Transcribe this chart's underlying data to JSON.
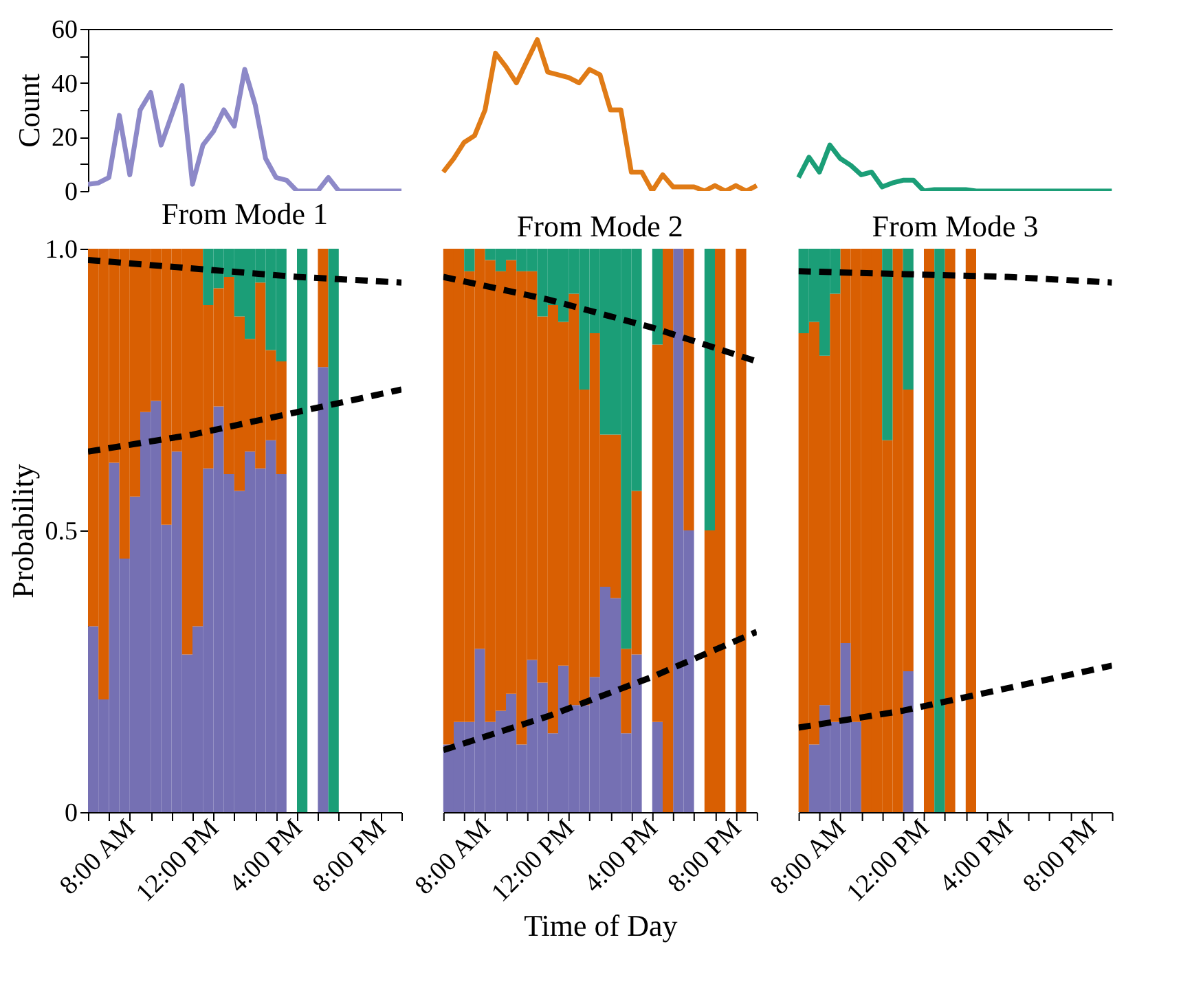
{
  "chart_data": [
    {
      "type": "line",
      "ylabel": "Count",
      "ylim": [
        0,
        60
      ],
      "yticks": [
        0,
        {
          "value": 10,
          "label": null
        },
        20,
        {
          "value": 30,
          "label": null
        },
        40,
        {
          "value": 50,
          "label": null
        },
        60
      ],
      "tick_labels": "y",
      "categories": [
        null,
        null,
        null,
        null,
        null,
        null,
        null,
        null,
        null,
        null,
        null,
        null,
        null,
        null,
        null,
        null,
        null,
        null,
        null,
        null,
        null,
        null,
        null,
        null,
        null,
        null,
        null,
        null,
        null,
        null,
        null,
        null,
        null,
        null,
        null,
        null,
        null,
        null,
        null,
        null,
        null,
        null,
        null,
        null,
        null,
        null,
        null,
        null,
        null,
        null,
        null,
        null,
        null,
        null,
        null,
        null,
        null,
        null,
        null,
        null,
        null,
        null,
        null,
        null,
        null,
        null,
        null,
        null,
        null,
        null,
        null,
        null,
        null,
        null,
        null,
        null,
        null,
        null,
        null,
        null,
        null,
        null,
        null,
        null,
        null,
        null,
        null,
        null,
        null,
        null,
        null,
        null,
        null,
        null,
        null,
        null,
        null,
        null,
        null
      ],
      "series": [
        {
          "color": "#8d89c8",
          "values": [
            2.5,
            3,
            5,
            28,
            6,
            30,
            36.5,
            17,
            28,
            39,
            2.5,
            17,
            22,
            30,
            24,
            45,
            32,
            12,
            5,
            4,
            0,
            0,
            0,
            5,
            0,
            0,
            0,
            0,
            0,
            0,
            0,
            null,
            null,
            null,
            null,
            null,
            null,
            null,
            null,
            null,
            null,
            null,
            null,
            null,
            null,
            null,
            null,
            null,
            null,
            null,
            null,
            null,
            null,
            null,
            null,
            null,
            null,
            null,
            null,
            null,
            null,
            null,
            null,
            null,
            null,
            null,
            null,
            null,
            null,
            null,
            null,
            null,
            null,
            null,
            null,
            null,
            null,
            null,
            null,
            null,
            null,
            null,
            null,
            null,
            null,
            null,
            null,
            null,
            null,
            null,
            null,
            null,
            null,
            null,
            null,
            null,
            null,
            null,
            null
          ]
        },
        {
          "color": "#e07b16",
          "values": [
            null,
            null,
            null,
            null,
            null,
            null,
            null,
            null,
            null,
            null,
            null,
            null,
            null,
            null,
            null,
            null,
            null,
            null,
            null,
            null,
            null,
            null,
            null,
            null,
            null,
            null,
            null,
            null,
            null,
            null,
            null,
            null,
            null,
            null,
            7,
            12,
            18,
            20.5,
            30,
            51,
            46,
            40,
            48,
            56,
            44,
            43,
            42,
            40,
            45,
            43,
            30,
            30,
            7,
            7,
            0,
            6,
            1.5,
            1.5,
            1.5,
            0,
            2,
            0,
            2,
            0,
            2,
            null,
            null,
            null,
            null,
            null,
            null,
            null,
            null,
            null,
            null,
            null,
            null,
            null,
            null,
            null,
            null,
            null,
            null,
            null,
            null,
            null,
            null,
            null,
            null,
            null,
            null,
            null,
            null,
            null,
            null,
            null,
            null,
            null,
            null
          ]
        },
        {
          "color": "#1b9e77",
          "values": [
            null,
            null,
            null,
            null,
            null,
            null,
            null,
            null,
            null,
            null,
            null,
            null,
            null,
            null,
            null,
            null,
            null,
            null,
            null,
            null,
            null,
            null,
            null,
            null,
            null,
            null,
            null,
            null,
            null,
            null,
            null,
            null,
            null,
            null,
            null,
            null,
            null,
            null,
            null,
            null,
            null,
            null,
            null,
            null,
            null,
            null,
            null,
            null,
            null,
            null,
            null,
            null,
            null,
            null,
            null,
            null,
            null,
            null,
            null,
            null,
            null,
            null,
            null,
            null,
            null,
            null,
            null,
            null,
            5,
            12.5,
            7,
            17,
            12,
            9.5,
            6,
            7,
            1.5,
            3,
            4,
            4,
            0,
            0.5,
            0.5,
            0.5,
            0.5,
            0,
            0,
            0,
            0,
            0,
            0,
            0,
            0,
            0,
            0,
            0,
            0,
            0,
            0
          ]
        }
      ]
    },
    {
      "type": "bar",
      "stacked": true,
      "title": "From Mode 1",
      "ylabel": "Probability",
      "xlim": [
        6,
        21
      ],
      "ylim": [
        0,
        1
      ],
      "yticks": [
        0,
        0.5,
        {
          "value": 1,
          "label": "1.0"
        }
      ],
      "xticks": [
        {
          "value": 6,
          "label": null
        },
        {
          "value": 7,
          "label": null
        },
        {
          "value": 8,
          "label": "8:00 AM"
        },
        {
          "value": 9,
          "label": null
        },
        {
          "value": 10,
          "label": null
        },
        {
          "value": 11,
          "label": null
        },
        {
          "value": 12,
          "label": "12:00 PM"
        },
        {
          "value": 13,
          "label": null
        },
        {
          "value": 14,
          "label": null
        },
        {
          "value": 15,
          "label": null
        },
        {
          "value": 16,
          "label": "4:00 PM"
        },
        {
          "value": 17,
          "label": null
        },
        {
          "value": 18,
          "label": null
        },
        {
          "value": 19,
          "label": null
        },
        {
          "value": 20,
          "label": "8:00 PM"
        },
        {
          "value": 21,
          "label": null
        }
      ],
      "x": [
        6.25,
        6.75,
        7.25,
        7.75,
        8.25,
        8.75,
        9.25,
        9.75,
        10.25,
        10.75,
        11.25,
        11.75,
        12.25,
        12.75,
        13.25,
        13.75,
        14.25,
        14.75,
        15.25,
        16.25,
        17.25,
        17.75
      ],
      "series": [
        {
          "color": "#7570b3",
          "values": [
            0.33,
            0.2,
            0.62,
            0.45,
            0.56,
            0.71,
            0.73,
            0.51,
            0.64,
            0.28,
            0.33,
            0.61,
            0.72,
            0.6,
            0.57,
            0.64,
            0.61,
            0.66,
            0.6,
            null,
            0.79,
            null
          ]
        },
        {
          "color": "#d95f02",
          "values": [
            0.67,
            0.8,
            0.38,
            0.55,
            0.44,
            0.29,
            0.27,
            0.49,
            0.36,
            0.72,
            0.67,
            0.29,
            0.21,
            0.35,
            0.31,
            0.2,
            0.33,
            0.16,
            0.2,
            null,
            0.21,
            null
          ]
        },
        {
          "color": "#1b9e77",
          "values": [
            null,
            null,
            null,
            null,
            null,
            null,
            null,
            null,
            null,
            null,
            null,
            0.1,
            0.07,
            0.05,
            0.12,
            0.16,
            0.06,
            0.18,
            0.2,
            1,
            null,
            1
          ]
        },
        {
          "type": "line",
          "line_style": "dashed",
          "color": "#000000",
          "x": [
            6,
            11,
            16,
            21
          ],
          "values": [
            0.64,
            0.67,
            0.71,
            0.75
          ]
        },
        {
          "type": "line",
          "line_style": "dashed",
          "color": "#000000",
          "x": [
            6,
            11,
            16,
            21
          ],
          "values": [
            0.98,
            0.965,
            0.95,
            0.94
          ]
        }
      ]
    },
    {
      "type": "bar",
      "stacked": true,
      "title": "From Mode 2",
      "xlabel": "Time of Day",
      "xlim": [
        6,
        21
      ],
      "ylim": [
        0,
        1
      ],
      "tick_labels": "x",
      "xticks": [
        {
          "value": 6,
          "label": null
        },
        {
          "value": 7,
          "label": null
        },
        {
          "value": 8,
          "label": "8:00 AM"
        },
        {
          "value": 9,
          "label": null
        },
        {
          "value": 10,
          "label": null
        },
        {
          "value": 11,
          "label": null
        },
        {
          "value": 12,
          "label": "12:00 PM"
        },
        {
          "value": 13,
          "label": null
        },
        {
          "value": 14,
          "label": null
        },
        {
          "value": 15,
          "label": null
        },
        {
          "value": 16,
          "label": "4:00 PM"
        },
        {
          "value": 17,
          "label": null
        },
        {
          "value": 18,
          "label": null
        },
        {
          "value": 19,
          "label": null
        },
        {
          "value": 20,
          "label": "8:00 PM"
        },
        {
          "value": 21,
          "label": null
        }
      ],
      "x": [
        6.25,
        6.75,
        7.25,
        7.75,
        8.25,
        8.75,
        9.25,
        9.75,
        10.25,
        10.75,
        11.25,
        11.75,
        12.25,
        12.75,
        13.25,
        13.75,
        14.25,
        14.75,
        15.25,
        16.25,
        16.75,
        17.25,
        17.75,
        18.75,
        19.25,
        20.25
      ],
      "series": [
        {
          "color": "#7570b3",
          "values": [
            0.12,
            0.16,
            0.16,
            0.29,
            0.16,
            0.18,
            0.21,
            0.12,
            0.27,
            0.23,
            0.14,
            0.26,
            0.19,
            0.19,
            0.24,
            0.4,
            0.38,
            0.14,
            0.28,
            0.16,
            null,
            1,
            0.5,
            null,
            null,
            null
          ]
        },
        {
          "color": "#d95f02",
          "values": [
            0.88,
            0.84,
            0.8,
            0.71,
            0.82,
            0.78,
            0.77,
            0.84,
            0.69,
            0.65,
            0.76,
            0.61,
            0.73,
            0.56,
            0.61,
            0.27,
            0.29,
            0.15,
            0.29,
            0.67,
            1,
            null,
            0.5,
            0.5,
            1,
            1
          ]
        },
        {
          "color": "#1b9e77",
          "values": [
            null,
            null,
            0.04,
            null,
            0.02,
            0.04,
            0.02,
            0.04,
            0.04,
            0.12,
            0.1,
            0.13,
            0.08,
            0.25,
            0.15,
            0.33,
            0.33,
            0.71,
            0.43,
            0.17,
            null,
            null,
            null,
            0.5,
            null,
            null
          ]
        },
        {
          "type": "line",
          "line_style": "dashed",
          "color": "#000000",
          "x": [
            6,
            11,
            16,
            21
          ],
          "values": [
            0.11,
            0.17,
            0.24,
            0.32
          ]
        },
        {
          "type": "line",
          "line_style": "dashed",
          "color": "#000000",
          "x": [
            6,
            11,
            16,
            21
          ],
          "values": [
            0.95,
            0.91,
            0.86,
            0.8
          ]
        }
      ]
    },
    {
      "type": "bar",
      "stacked": true,
      "title": "From Mode 3",
      "xlim": [
        6,
        21
      ],
      "ylim": [
        0,
        1
      ],
      "tick_labels": "x",
      "xticks": [
        {
          "value": 6,
          "label": null
        },
        {
          "value": 7,
          "label": null
        },
        {
          "value": 8,
          "label": "8:00 AM"
        },
        {
          "value": 9,
          "label": null
        },
        {
          "value": 10,
          "label": null
        },
        {
          "value": 11,
          "label": null
        },
        {
          "value": 12,
          "label": "12:00 PM"
        },
        {
          "value": 13,
          "label": null
        },
        {
          "value": 14,
          "label": null
        },
        {
          "value": 15,
          "label": null
        },
        {
          "value": 16,
          "label": "4:00 PM"
        },
        {
          "value": 17,
          "label": null
        },
        {
          "value": 18,
          "label": null
        },
        {
          "value": 19,
          "label": null
        },
        {
          "value": 20,
          "label": "8:00 PM"
        },
        {
          "value": 21,
          "label": null
        }
      ],
      "x": [
        6.25,
        6.75,
        7.25,
        7.75,
        8.25,
        8.75,
        9.25,
        9.75,
        10.25,
        10.75,
        11.25,
        12.25,
        12.75,
        13.25,
        14.25
      ],
      "series": [
        {
          "color": "#7570b3",
          "values": [
            null,
            0.12,
            0.19,
            0.16,
            0.3,
            0.16,
            null,
            null,
            null,
            null,
            0.25,
            null,
            null,
            null,
            null
          ]
        },
        {
          "color": "#d95f02",
          "values": [
            0.85,
            0.75,
            0.62,
            0.76,
            0.7,
            0.84,
            1,
            1,
            0.66,
            1,
            0.5,
            1,
            null,
            1,
            1
          ]
        },
        {
          "color": "#1b9e77",
          "values": [
            0.15,
            0.13,
            0.19,
            0.08,
            null,
            null,
            null,
            null,
            0.34,
            null,
            0.25,
            null,
            1,
            null,
            null
          ]
        },
        {
          "type": "line",
          "line_style": "dashed",
          "color": "#000000",
          "x": [
            6,
            11,
            16,
            21
          ],
          "values": [
            0.15,
            0.18,
            0.22,
            0.26
          ]
        },
        {
          "type": "line",
          "line_style": "dashed",
          "color": "#000000",
          "x": [
            6,
            11,
            16,
            21
          ],
          "values": [
            0.96,
            0.955,
            0.95,
            0.94
          ]
        }
      ]
    }
  ]
}
